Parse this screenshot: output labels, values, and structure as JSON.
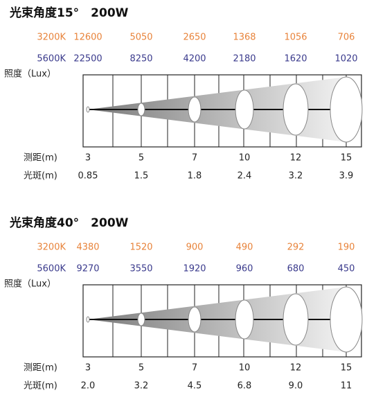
{
  "panels": [
    {
      "title": "光束角度15°　200W",
      "rows": [
        {
          "label": "3200K",
          "values": [
            "12600",
            "5050",
            "2650",
            "1368",
            "1056",
            "706"
          ]
        },
        {
          "label": "5600K",
          "values": [
            "22500",
            "8250",
            "4200",
            "2180",
            "1620",
            "1020"
          ]
        }
      ],
      "illuminance_label": "照度（Lux）",
      "distance": {
        "label": "测距(m)",
        "values": [
          "3",
          "5",
          "7",
          "10",
          "12",
          "15"
        ]
      },
      "spot": {
        "label": "光斑(m)",
        "values": [
          "0.85",
          "1.5",
          "1.8",
          "2.4",
          "3.2",
          "3.9"
        ]
      }
    },
    {
      "title": "光束角度40°　200W",
      "rows": [
        {
          "label": "3200K",
          "values": [
            "4380",
            "1520",
            "900",
            "490",
            "292",
            "190"
          ]
        },
        {
          "label": "5600K",
          "values": [
            "9270",
            "3550",
            "1920",
            "960",
            "680",
            "450"
          ]
        }
      ],
      "illuminance_label": "照度（Lux）",
      "distance": {
        "label": "测距(m)",
        "values": [
          "3",
          "5",
          "7",
          "10",
          "12",
          "15"
        ]
      },
      "spot": {
        "label": "光斑(m)",
        "values": [
          "2.0",
          "3.2",
          "4.5",
          "6.8",
          "9.0",
          "11"
        ]
      }
    }
  ]
}
